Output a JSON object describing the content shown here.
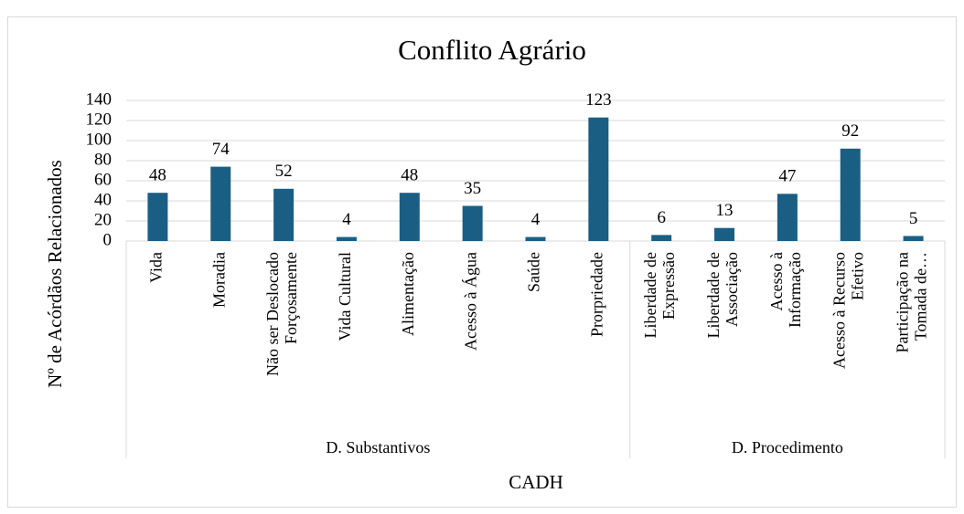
{
  "chart_data": {
    "type": "bar",
    "title": "Conflito Agrário",
    "y_label": "Nº de Acórdãos Relacionados",
    "x_label": "CADH",
    "color": "#1b5e84",
    "grid": true,
    "ylim": [
      0,
      140
    ],
    "yticks": [
      0,
      20,
      40,
      60,
      80,
      100,
      120,
      140
    ],
    "groups": [
      {
        "name": "D. Substantivos",
        "categories": [
          "Vida",
          "Moradia",
          "Não ser Deslocado Forçosamente",
          "Vida Cultural",
          "Alimentação",
          "Acesso à Água",
          "Saúde",
          "Prorpriedade"
        ],
        "values": [
          48,
          74,
          52,
          4,
          48,
          35,
          4,
          123
        ]
      },
      {
        "name": "D. Procedimento",
        "categories": [
          "Liberdade de Expressão",
          "Liberdade de Associação",
          "Acesso à Informação",
          "Acesso à Recurso Efetivo",
          "Participação na Tomada de…"
        ],
        "values": [
          6,
          13,
          47,
          92,
          5
        ]
      }
    ]
  }
}
